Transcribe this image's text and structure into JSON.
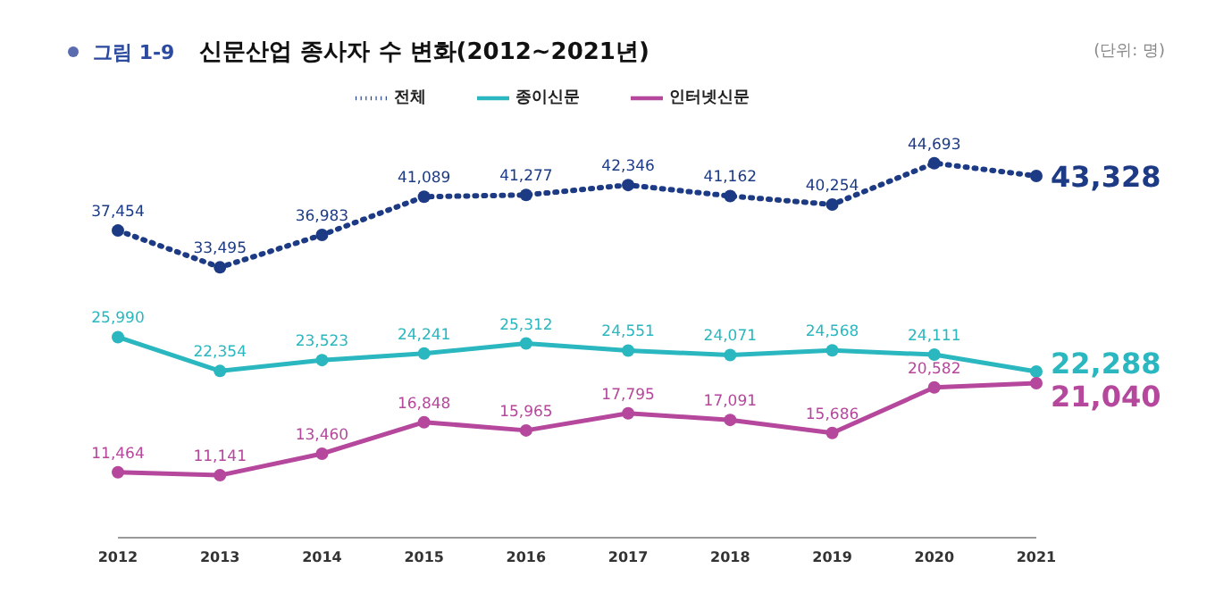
{
  "chart_data": {
    "type": "line",
    "title": "신문산업 종사자 수 변화(2012~2021년)",
    "annotations": [
      "그림 1-9",
      "(단위: 명)"
    ],
    "categories": [
      "2012",
      "2013",
      "2014",
      "2015",
      "2016",
      "2017",
      "2018",
      "2019",
      "2020",
      "2021"
    ],
    "series": [
      {
        "name": "전체",
        "color": "#1d3a84",
        "line_style": "dotted",
        "values": [
          37454,
          33495,
          36983,
          41089,
          41277,
          42346,
          41162,
          40254,
          44693,
          43328
        ],
        "value_labels": [
          "37,454",
          "33,495",
          "36,983",
          "41,089",
          "41,277",
          "42,346",
          "41,162",
          "40,254",
          "44,693",
          "43,328"
        ]
      },
      {
        "name": "종이신문",
        "color": "#2ab7bf",
        "line_style": "solid",
        "values": [
          25990,
          22354,
          23523,
          24241,
          25312,
          24551,
          24071,
          24568,
          24111,
          22288
        ],
        "value_labels": [
          "25,990",
          "22,354",
          "23,523",
          "24,241",
          "25,312",
          "24,551",
          "24,071",
          "24,568",
          "24,111",
          "22,288"
        ]
      },
      {
        "name": "인터넷신문",
        "color": "#b5479c",
        "line_style": "solid",
        "values": [
          11464,
          11141,
          13460,
          16848,
          15965,
          17795,
          17091,
          15686,
          20582,
          21040
        ],
        "value_labels": [
          "11,464",
          "11,141",
          "13,460",
          "16,848",
          "15,965",
          "17,795",
          "17,091",
          "15,686",
          "20,582",
          "21,040"
        ]
      }
    ],
    "marker": "circle",
    "legend": "top",
    "grid": false
  }
}
